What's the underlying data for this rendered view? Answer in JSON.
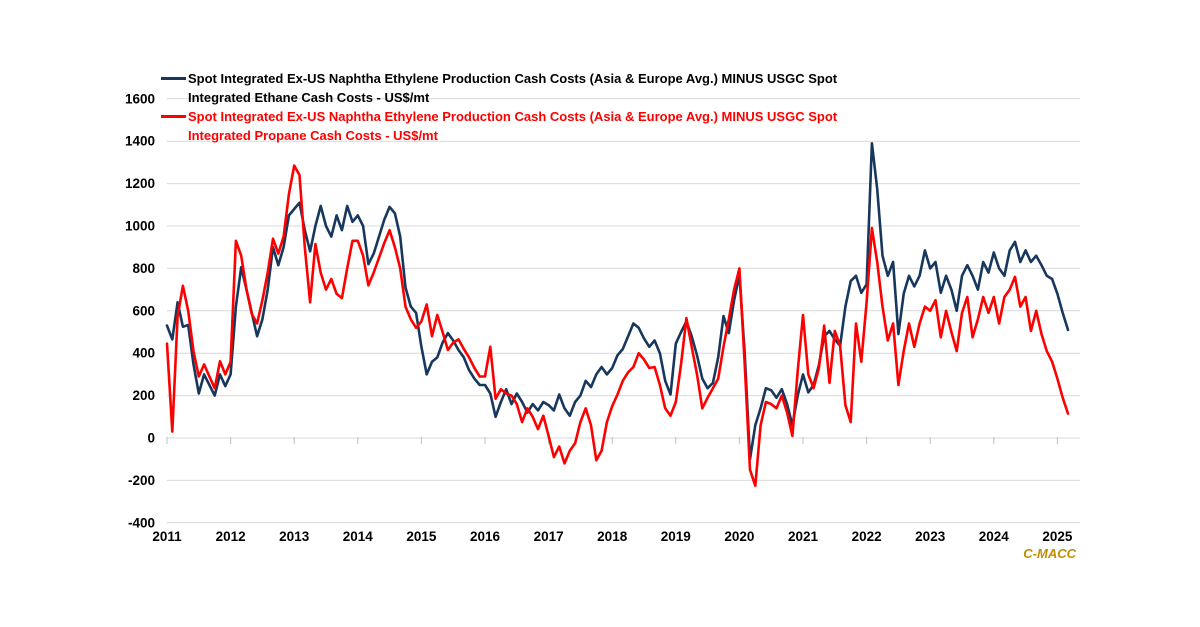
{
  "chart": {
    "watermark": "C-MACC",
    "watermark_color": "#BF8F00",
    "background_color": "#FFFFFF",
    "gridline_color": "#D9D9D9",
    "tick_color": "#BFBFBF",
    "axis_text_color": "#000000"
  },
  "chart_data": {
    "type": "line",
    "title": "",
    "xlabel": "",
    "ylabel": "",
    "grid": "horizontal",
    "legend_position": "top-left",
    "x_start_year": 2011,
    "x_points_per_year": 12,
    "x_end_label": "2025",
    "xticks": [
      2011,
      2012,
      2013,
      2014,
      2015,
      2016,
      2017,
      2018,
      2019,
      2020,
      2021,
      2022,
      2023,
      2024,
      2025
    ],
    "ylim": [
      -400,
      1600
    ],
    "ytick_step": 200,
    "yticks": [
      -400,
      -200,
      0,
      200,
      400,
      600,
      800,
      1000,
      1200,
      1400,
      1600
    ],
    "series": [
      {
        "name": "Spot Integrated Ex-US Naphtha Ethylene Production Cash Costs (Asia & Europe Avg.) MINUS USGC Spot Integrated Ethane Cash Costs - US$/mt",
        "color": "#17375D",
        "legend_text_color": "#000000",
        "values": [
          530,
          465,
          640,
          525,
          533,
          347,
          210,
          300,
          250,
          200,
          300,
          245,
          300,
          620,
          805,
          700,
          590,
          480,
          560,
          700,
          900,
          815,
          900,
          1050,
          1080,
          1110,
          980,
          880,
          1000,
          1095,
          1000,
          950,
          1050,
          980,
          1095,
          1020,
          1050,
          1000,
          820,
          870,
          950,
          1030,
          1090,
          1060,
          950,
          710,
          620,
          590,
          430,
          300,
          360,
          380,
          450,
          495,
          460,
          415,
          380,
          320,
          280,
          250,
          250,
          210,
          100,
          170,
          230,
          160,
          210,
          170,
          120,
          160,
          130,
          170,
          155,
          130,
          205,
          140,
          105,
          170,
          200,
          270,
          240,
          300,
          335,
          300,
          330,
          390,
          420,
          480,
          540,
          520,
          470,
          430,
          460,
          400,
          270,
          205,
          445,
          500,
          550,
          480,
          390,
          280,
          235,
          260,
          380,
          575,
          495,
          650,
          770,
          400,
          -100,
          60,
          140,
          235,
          225,
          190,
          230,
          160,
          60,
          200,
          300,
          215,
          250,
          345,
          480,
          505,
          465,
          435,
          620,
          740,
          765,
          685,
          725,
          1390,
          1175,
          860,
          765,
          830,
          490,
          680,
          765,
          715,
          765,
          885,
          800,
          830,
          685,
          765,
          700,
          600,
          765,
          815,
          765,
          700,
          830,
          780,
          875,
          800,
          765,
          885,
          925,
          830,
          885,
          830,
          860,
          815,
          765,
          750,
          680,
          590,
          510
        ]
      },
      {
        "name": "Spot Integrated Ex-US Naphtha Ethylene Production Cash Costs (Asia & Europe Avg.) MINUS USGC Spot Integrated Propane Cash Costs - US$/mt",
        "color": "#FF0000",
        "legend_text_color": "#FF0000",
        "values": [
          445,
          30,
          573,
          718,
          600,
          410,
          290,
          347,
          290,
          235,
          362,
          300,
          360,
          930,
          860,
          700,
          585,
          540,
          650,
          780,
          940,
          870,
          950,
          1150,
          1285,
          1240,
          900,
          640,
          915,
          780,
          700,
          750,
          680,
          660,
          800,
          930,
          930,
          860,
          720,
          780,
          850,
          920,
          980,
          900,
          800,
          620,
          560,
          520,
          550,
          630,
          480,
          580,
          500,
          415,
          450,
          465,
          420,
          380,
          330,
          290,
          290,
          430,
          185,
          230,
          210,
          200,
          160,
          75,
          140,
          100,
          42,
          105,
          10,
          -90,
          -40,
          -120,
          -60,
          -25,
          75,
          140,
          60,
          -105,
          -60,
          75,
          150,
          205,
          270,
          310,
          335,
          400,
          370,
          330,
          335,
          250,
          140,
          105,
          170,
          350,
          565,
          430,
          300,
          140,
          190,
          235,
          280,
          430,
          560,
          700,
          800,
          350,
          -150,
          -225,
          60,
          170,
          160,
          140,
          200,
          120,
          10,
          315,
          580,
          300,
          235,
          330,
          530,
          260,
          505,
          435,
          155,
          75,
          540,
          360,
          640,
          990,
          830,
          620,
          460,
          540,
          250,
          410,
          540,
          430,
          540,
          620,
          600,
          650,
          475,
          600,
          500,
          410,
          590,
          665,
          475,
          560,
          665,
          590,
          665,
          540,
          665,
          700,
          760,
          620,
          665,
          505,
          600,
          490,
          410,
          360,
          280,
          190,
          115
        ]
      }
    ]
  }
}
